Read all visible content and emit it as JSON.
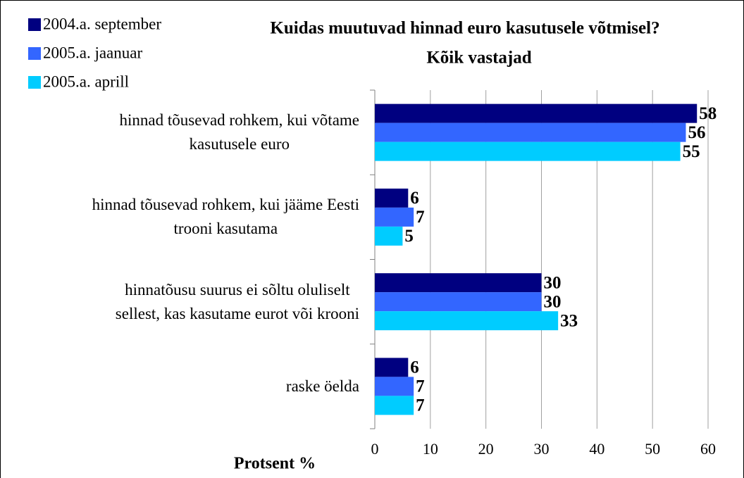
{
  "chart_data": {
    "type": "bar",
    "orientation": "horizontal",
    "title": "Kuidas muutuvad hinnad euro kasutusele võtmisel?",
    "subtitle": "Kõik vastajad",
    "x_label": "Protsent %",
    "categories": [
      "hinnad tõusevad rohkem, kui võtame\nkasutusele euro",
      "hinnad tõusevad rohkem, kui jääme Eesti\ntrooni kasutama",
      "hinnatõusu suurus ei sõltu oluliselt\nsellest, kas kasutame eurot või krooni",
      "raske öelda"
    ],
    "series": [
      {
        "name": "2004.a. september",
        "color": "#000080",
        "values": [
          58,
          6,
          30,
          6
        ]
      },
      {
        "name": "2005.a. jaanuar",
        "color": "#3366ff",
        "values": [
          56,
          7,
          30,
          7
        ]
      },
      {
        "name": "2005.a. aprill",
        "color": "#00ccff",
        "values": [
          55,
          5,
          33,
          7
        ]
      }
    ],
    "xlim": [
      0,
      60
    ],
    "xticks": [
      0,
      10,
      20,
      30,
      40,
      50,
      60
    ],
    "grid": true,
    "legend": "top-left"
  }
}
